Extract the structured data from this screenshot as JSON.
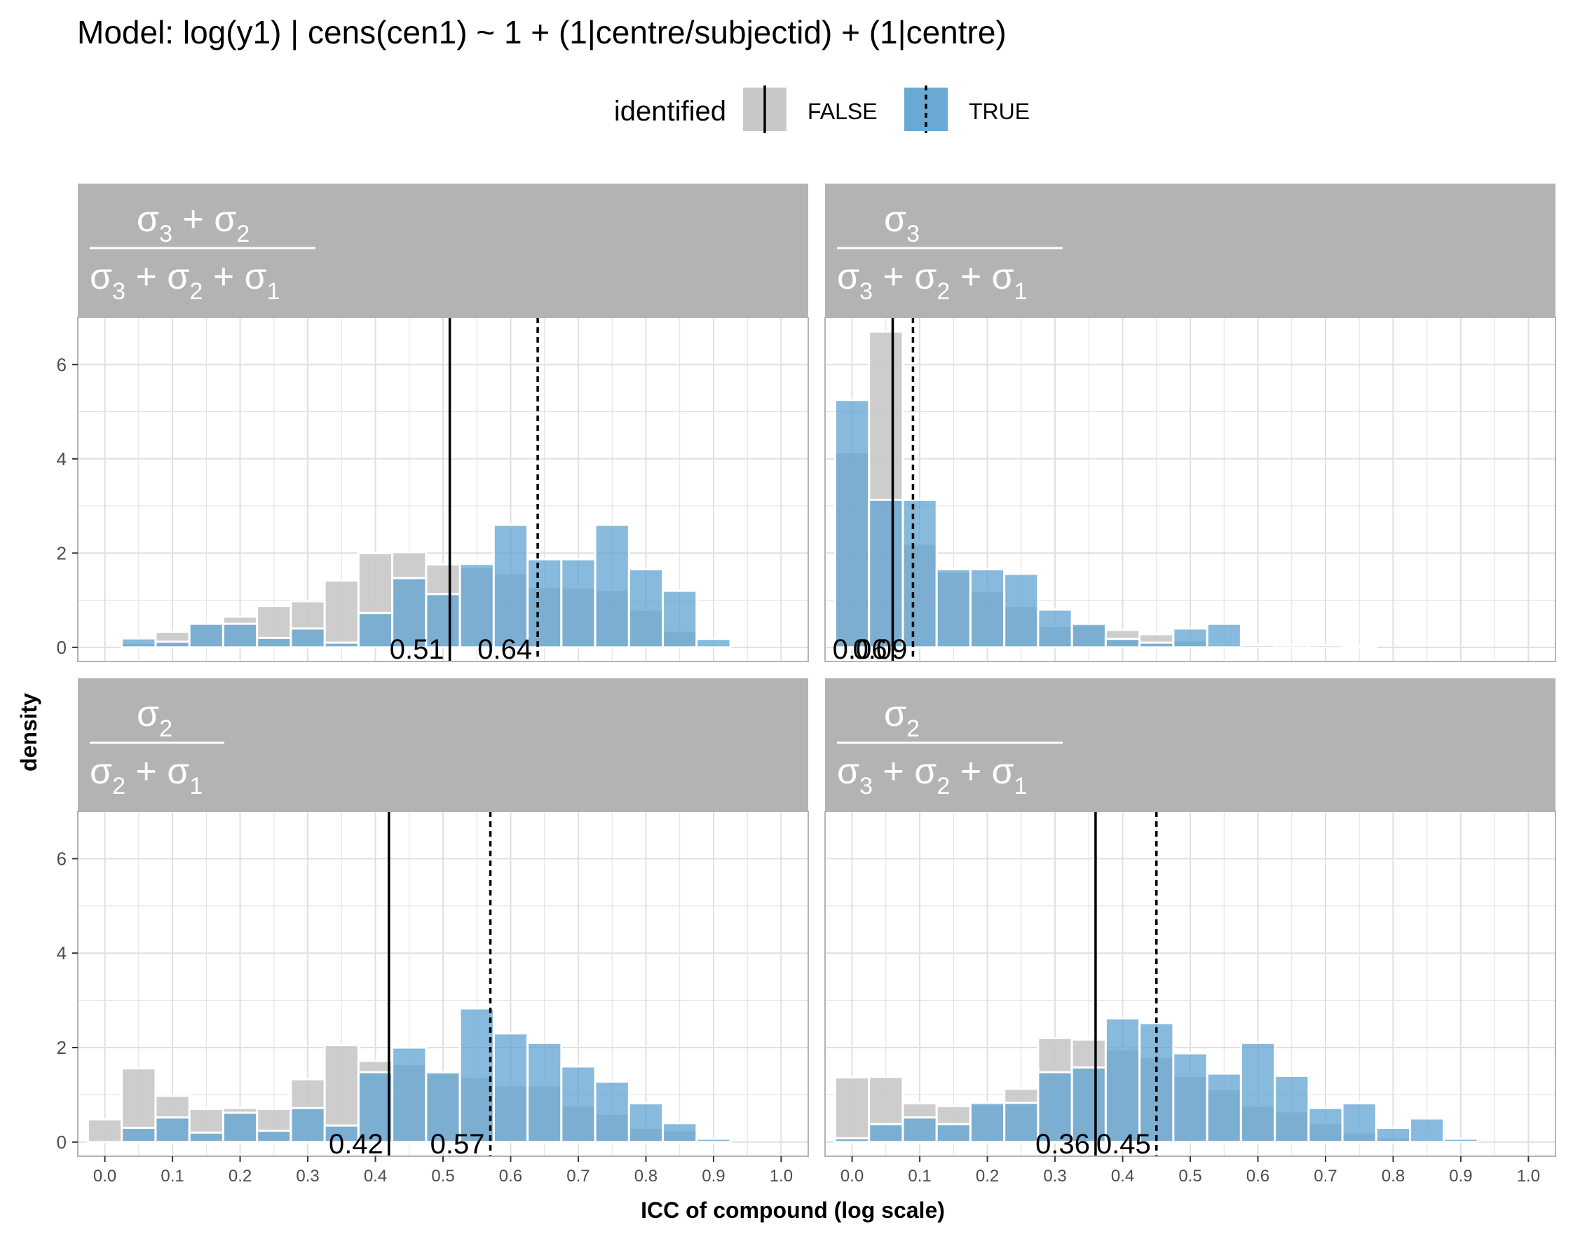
{
  "title": "Model: log(y1) | cens(cen1) ~ 1 + (1|centre/subjectid) + (1|centre)",
  "legend": {
    "title": "identified",
    "items": [
      {
        "label": "FALSE",
        "fill": "#c4c4c4",
        "line": "solid"
      },
      {
        "label": "TRUE",
        "fill": "#6aa9d4",
        "line": "dashed"
      }
    ]
  },
  "colors": {
    "false_fill": "#c8c8c8",
    "true_fill": "#5fa3d0",
    "strip": "#b3b3b3",
    "grid": "#e0e0e0"
  },
  "chart_data": {
    "type": "bar",
    "xlabel": "ICC of compound (log scale)",
    "ylabel": "density",
    "xlim": [
      -0.04,
      1.04
    ],
    "ylim": [
      -0.3,
      7
    ],
    "xticks": [
      "0.0",
      "0.1",
      "0.2",
      "0.3",
      "0.4",
      "0.5",
      "0.6",
      "0.7",
      "0.8",
      "0.9",
      "1.0"
    ],
    "yticks": [
      "0",
      "2",
      "4",
      "6"
    ],
    "bin_width": 0.05,
    "bin_centers": [
      0.0,
      0.05,
      0.1,
      0.15,
      0.2,
      0.25,
      0.3,
      0.35,
      0.4,
      0.45,
      0.5,
      0.55,
      0.6,
      0.65,
      0.7,
      0.75,
      0.8,
      0.85,
      0.9,
      0.95,
      1.0
    ],
    "panels": [
      {
        "strip": {
          "num": [
            "σ",
            "3",
            " + σ",
            "2"
          ],
          "den": [
            "σ",
            "3",
            " + σ",
            "2",
            " + σ",
            "1"
          ]
        },
        "false_values": [
          0,
          0.1,
          0.33,
          0.5,
          0.65,
          0.88,
          0.98,
          1.42,
          2.0,
          2.02,
          1.76,
          1.7,
          1.57,
          1.28,
          1.27,
          1.22,
          0.8,
          0.35,
          0.05,
          0,
          0
        ],
        "true_values": [
          0,
          0.19,
          0.12,
          0.5,
          0.5,
          0.2,
          0.4,
          0.1,
          0.73,
          1.47,
          1.13,
          1.77,
          2.6,
          1.87,
          1.87,
          2.6,
          1.66,
          1.2,
          0.18,
          0,
          0
        ],
        "vline_false": 0.51,
        "vline_true": 0.64,
        "label_false": "0.51",
        "label_true": "0.64"
      },
      {
        "strip": {
          "num": [
            "σ",
            "3"
          ],
          "den": [
            "σ",
            "3",
            " + σ",
            "2",
            " + σ",
            "1"
          ]
        },
        "false_values": [
          4.14,
          6.7,
          2.2,
          1.6,
          1.2,
          0.88,
          0.45,
          0.47,
          0.37,
          0.28,
          0.15,
          0.05,
          0.06,
          0.05,
          0.04,
          0.04,
          0,
          0,
          0,
          0,
          0
        ],
        "true_values": [
          5.25,
          3.13,
          3.13,
          1.66,
          1.66,
          1.56,
          0.8,
          0.5,
          0.18,
          0.1,
          0.4,
          0.5,
          0.05,
          0,
          0.05,
          0,
          0,
          0,
          0,
          0,
          0
        ],
        "vline_false": 0.06,
        "vline_true": 0.09,
        "label_false": "0.06",
        "label_true": "0.09"
      },
      {
        "strip": {
          "num": [
            "σ",
            "2"
          ],
          "den": [
            "σ",
            "2",
            " + σ",
            "1"
          ]
        },
        "false_values": [
          0.48,
          1.56,
          0.98,
          0.7,
          0.72,
          0.7,
          1.33,
          2.05,
          1.72,
          1.65,
          1.45,
          1.38,
          1.2,
          1.2,
          0.77,
          0.6,
          0.3,
          0.25,
          0.05,
          0,
          0
        ],
        "true_values": [
          0,
          0.3,
          0.52,
          0.2,
          0.62,
          0.24,
          0.72,
          0.35,
          1.48,
          2.0,
          1.48,
          2.83,
          2.3,
          2.1,
          1.6,
          1.28,
          0.82,
          0.4,
          0.07,
          0,
          0
        ],
        "vline_false": 0.42,
        "vline_true": 0.57,
        "label_false": "0.42",
        "label_true": "0.57"
      },
      {
        "strip": {
          "num": [
            "σ",
            "2"
          ],
          "den": [
            "σ",
            "3",
            " + σ",
            "2",
            " + σ",
            "1"
          ]
        },
        "false_values": [
          1.37,
          1.38,
          0.82,
          0.76,
          0.8,
          1.13,
          2.2,
          2.17,
          1.97,
          1.8,
          1.4,
          1.12,
          0.77,
          0.65,
          0.4,
          0.2,
          0.1,
          0.05,
          0,
          0,
          0
        ],
        "true_values": [
          0.08,
          0.38,
          0.52,
          0.38,
          0.83,
          0.83,
          1.48,
          1.58,
          2.62,
          2.52,
          1.88,
          1.45,
          2.1,
          1.4,
          0.72,
          0.82,
          0.3,
          0.5,
          0.07,
          0,
          0
        ],
        "vline_false": 0.36,
        "vline_true": 0.45,
        "label_false": "0.36",
        "label_true": "0.45"
      }
    ]
  }
}
